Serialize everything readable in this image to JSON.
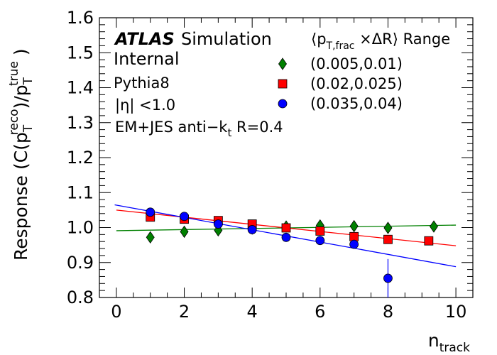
{
  "chart_data": {
    "type": "scatter",
    "xlabel_main": "n",
    "xlabel_sub": "track",
    "ylabel": "Response (C(p_T^reco)/p_T^true )",
    "xlim": [
      -0.5,
      10.5
    ],
    "ylim": [
      0.8,
      1.6
    ],
    "x_ticks": [
      "0",
      "2",
      "4",
      "6",
      "8",
      "10"
    ],
    "y_ticks": [
      "0.8",
      "0.9",
      "1.0",
      "1.1",
      "1.2",
      "1.3",
      "1.4",
      "1.5",
      "1.6"
    ],
    "annotations": {
      "atlas": "ATLAS",
      "simulation": "Simulation",
      "internal": "Internal",
      "generator": "Pythia8",
      "eta_cut": "|η| <1.0",
      "jet_def": "EM+JES anti−k_t R=0.4"
    },
    "legend_title": "⟨p_T,frac ×ΔR⟩ Range",
    "legend_placement": "top-right",
    "series": [
      {
        "name": "(0.005,0.01)",
        "marker": "diamond",
        "color": "#008000",
        "points": [
          {
            "x": 1.0,
            "y": 0.972,
            "err": 0.004
          },
          {
            "x": 2.0,
            "y": 0.988,
            "err": 0.004
          },
          {
            "x": 3.0,
            "y": 0.992,
            "err": 0.004
          },
          {
            "x": 4.0,
            "y": 0.997,
            "err": 0.004
          },
          {
            "x": 5.0,
            "y": 1.003,
            "err": 0.004
          },
          {
            "x": 6.0,
            "y": 1.006,
            "err": 0.004
          },
          {
            "x": 7.0,
            "y": 1.004,
            "err": 0.004
          },
          {
            "x": 8.0,
            "y": 0.999,
            "err": 0.005
          },
          {
            "x": 9.35,
            "y": 1.003,
            "err": 0.005
          }
        ],
        "fit": {
          "x": [
            0,
            10
          ],
          "y": [
            0.991,
            1.007
          ]
        }
      },
      {
        "name": "(0.02,0.025)",
        "marker": "square",
        "color": "#ff0000",
        "points": [
          {
            "x": 1.0,
            "y": 1.03,
            "err": 0.004
          },
          {
            "x": 2.0,
            "y": 1.024,
            "err": 0.004
          },
          {
            "x": 3.0,
            "y": 1.02,
            "err": 0.004
          },
          {
            "x": 4.0,
            "y": 1.01,
            "err": 0.004
          },
          {
            "x": 5.0,
            "y": 0.999,
            "err": 0.004
          },
          {
            "x": 6.0,
            "y": 0.99,
            "err": 0.004
          },
          {
            "x": 7.0,
            "y": 0.974,
            "err": 0.006
          },
          {
            "x": 8.0,
            "y": 0.966,
            "err": 0.006
          },
          {
            "x": 9.2,
            "y": 0.962,
            "err": 0.006
          }
        ],
        "fit": {
          "x": [
            0,
            10
          ],
          "y": [
            1.05,
            0.948
          ]
        }
      },
      {
        "name": "(0.035,0.04)",
        "marker": "circle",
        "color": "#0000ff",
        "points": [
          {
            "x": 1.0,
            "y": 1.044,
            "err": 0.004
          },
          {
            "x": 2.0,
            "y": 1.032,
            "err": 0.004
          },
          {
            "x": 3.0,
            "y": 1.01,
            "err": 0.004
          },
          {
            "x": 4.0,
            "y": 0.994,
            "err": 0.004
          },
          {
            "x": 5.0,
            "y": 0.972,
            "err": 0.005
          },
          {
            "x": 6.0,
            "y": 0.963,
            "err": 0.005
          },
          {
            "x": 7.0,
            "y": 0.952,
            "err": 0.01
          },
          {
            "x": 8.0,
            "y": 0.855,
            "err": 0.055
          }
        ],
        "fit": {
          "x": [
            -0.05,
            10
          ],
          "y": [
            1.065,
            0.888
          ]
        }
      }
    ]
  }
}
